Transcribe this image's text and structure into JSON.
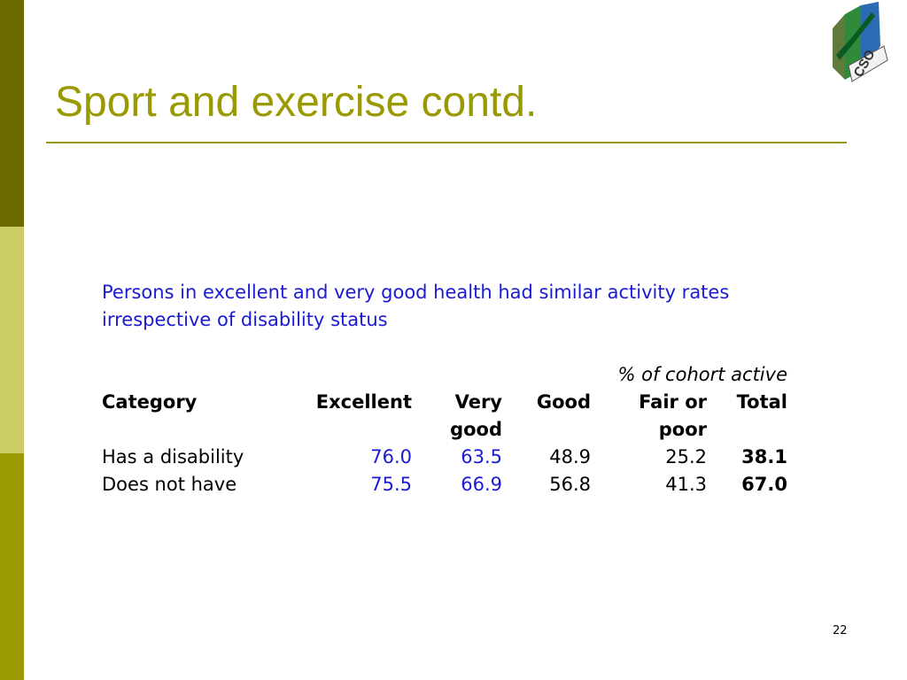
{
  "title": "Sport and exercise contd.",
  "subtitle": "Persons in excellent and very good health had similar activity rates irrespective of disability status",
  "logo": {
    "icon": "cso-logo",
    "text": "CSO"
  },
  "table": {
    "note": "% of cohort active",
    "headers": {
      "category": "Category",
      "excellent": "Excellent",
      "very_good_1": "Very",
      "very_good_2": "good",
      "good": "Good",
      "fair_poor_1": "Fair or",
      "fair_poor_2": "poor",
      "total": "Total"
    },
    "rows": [
      {
        "category": "Has a disability",
        "excellent": "76.0",
        "very_good": "63.5",
        "good": "48.9",
        "fair_poor": "25.2",
        "total": "38.1"
      },
      {
        "category": "Does not have",
        "excellent": "75.5",
        "very_good": "66.9",
        "good": "56.8",
        "fair_poor": "41.3",
        "total": "67.0"
      }
    ]
  },
  "page_number": "22",
  "colors": {
    "accent": "#999900",
    "dark_accent": "#6b6b00",
    "light_accent": "#cccc66",
    "highlight_text": "#1a1ad6"
  }
}
